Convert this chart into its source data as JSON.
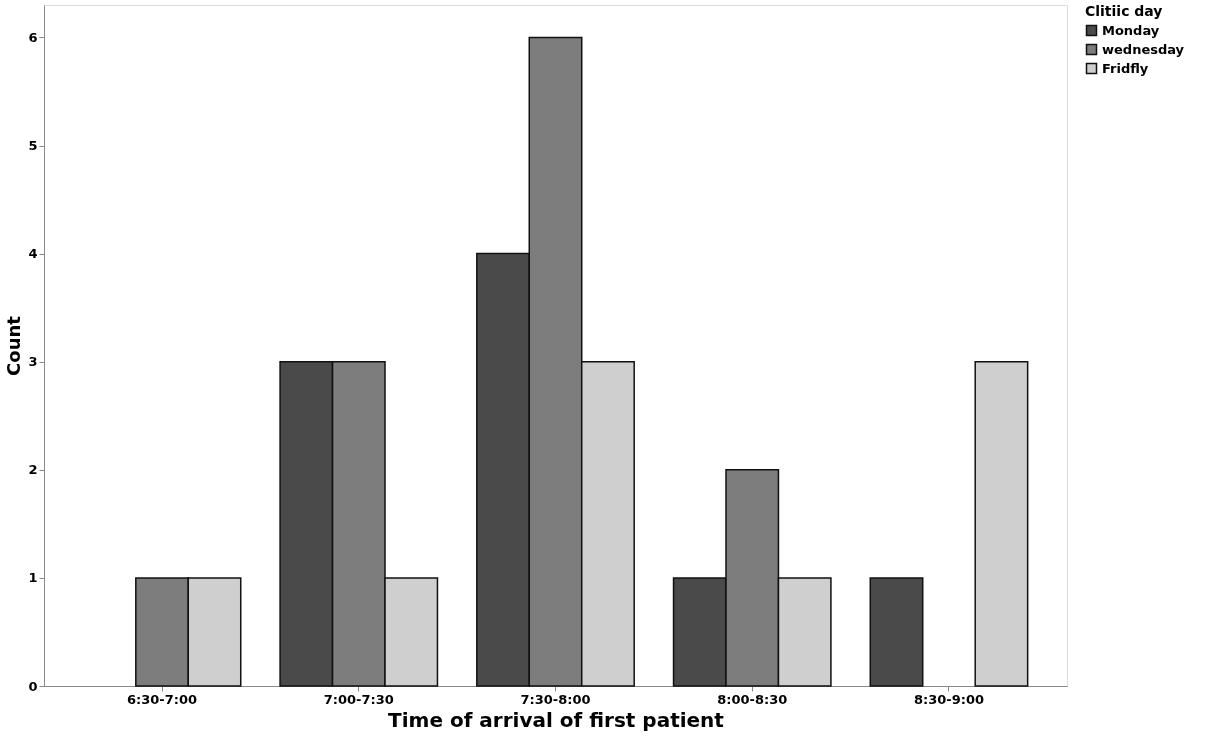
{
  "chart_data": {
    "type": "bar",
    "xlabel": "Time of arrival of first patient",
    "ylabel": "Count",
    "legend_title": "Clitiic day",
    "categories": [
      "6:30-7:00",
      "7:00-7:30",
      "7:30-8:00",
      "8:00-8:30",
      "8:30-9:00"
    ],
    "series": [
      {
        "name": "Monday",
        "color": "#4a4a4a",
        "values": [
          null,
          3,
          4,
          1,
          1
        ]
      },
      {
        "name": "wednesday",
        "color": "#7d7d7d",
        "values": [
          1,
          3,
          6,
          2,
          null
        ]
      },
      {
        "name": "Fridfly",
        "color": "#cfcfcf",
        "values": [
          1,
          1,
          3,
          1,
          3
        ]
      }
    ],
    "ylim": [
      0,
      6.3
    ],
    "yticks": [
      0,
      1,
      2,
      3,
      4,
      5,
      6
    ],
    "grid": false,
    "legend": "top right"
  }
}
